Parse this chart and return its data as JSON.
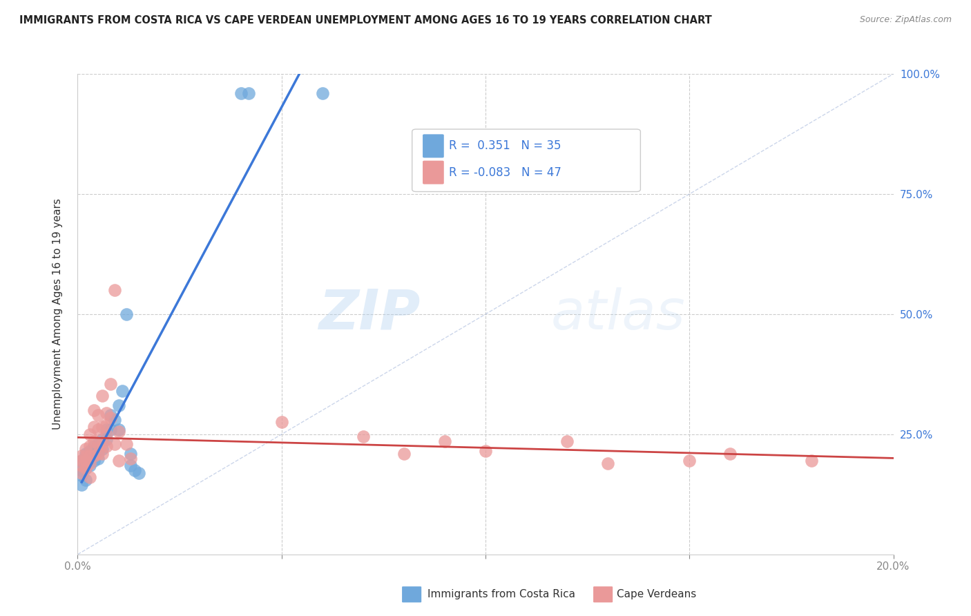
{
  "title": "IMMIGRANTS FROM COSTA RICA VS CAPE VERDEAN UNEMPLOYMENT AMONG AGES 16 TO 19 YEARS CORRELATION CHART",
  "source": "Source: ZipAtlas.com",
  "ylabel": "Unemployment Among Ages 16 to 19 years",
  "legend_label1": "Immigrants from Costa Rica",
  "legend_label2": "Cape Verdeans",
  "R1": 0.351,
  "N1": 35,
  "R2": -0.083,
  "N2": 47,
  "xlim": [
    0.0,
    0.2
  ],
  "ylim": [
    0.0,
    1.0
  ],
  "color_blue": "#6fa8dc",
  "color_pink": "#ea9999",
  "color_blue_line": "#3c78d8",
  "color_pink_line": "#cc4444",
  "color_diag": "#aabbdd",
  "watermark_zip": "ZIP",
  "watermark_atlas": "atlas",
  "blue_dots": [
    [
      0.001,
      0.195
    ],
    [
      0.001,
      0.175
    ],
    [
      0.001,
      0.165
    ],
    [
      0.002,
      0.21
    ],
    [
      0.002,
      0.195
    ],
    [
      0.002,
      0.18
    ],
    [
      0.003,
      0.215
    ],
    [
      0.003,
      0.2
    ],
    [
      0.003,
      0.185
    ],
    [
      0.004,
      0.225
    ],
    [
      0.004,
      0.205
    ],
    [
      0.004,
      0.195
    ],
    [
      0.005,
      0.23
    ],
    [
      0.005,
      0.215
    ],
    [
      0.005,
      0.2
    ],
    [
      0.006,
      0.24
    ],
    [
      0.006,
      0.22
    ],
    [
      0.007,
      0.26
    ],
    [
      0.007,
      0.24
    ],
    [
      0.008,
      0.29
    ],
    [
      0.008,
      0.26
    ],
    [
      0.009,
      0.28
    ],
    [
      0.01,
      0.31
    ],
    [
      0.01,
      0.26
    ],
    [
      0.011,
      0.34
    ],
    [
      0.012,
      0.5
    ],
    [
      0.013,
      0.21
    ],
    [
      0.013,
      0.185
    ],
    [
      0.014,
      0.175
    ],
    [
      0.015,
      0.17
    ],
    [
      0.04,
      0.96
    ],
    [
      0.042,
      0.96
    ],
    [
      0.06,
      0.96
    ],
    [
      0.001,
      0.145
    ],
    [
      0.002,
      0.155
    ]
  ],
  "pink_dots": [
    [
      0.001,
      0.205
    ],
    [
      0.001,
      0.195
    ],
    [
      0.001,
      0.185
    ],
    [
      0.001,
      0.17
    ],
    [
      0.002,
      0.22
    ],
    [
      0.002,
      0.205
    ],
    [
      0.002,
      0.195
    ],
    [
      0.002,
      0.18
    ],
    [
      0.003,
      0.25
    ],
    [
      0.003,
      0.225
    ],
    [
      0.003,
      0.205
    ],
    [
      0.003,
      0.19
    ],
    [
      0.004,
      0.3
    ],
    [
      0.004,
      0.265
    ],
    [
      0.004,
      0.235
    ],
    [
      0.004,
      0.205
    ],
    [
      0.005,
      0.29
    ],
    [
      0.005,
      0.26
    ],
    [
      0.005,
      0.23
    ],
    [
      0.005,
      0.21
    ],
    [
      0.006,
      0.33
    ],
    [
      0.006,
      0.265
    ],
    [
      0.006,
      0.23
    ],
    [
      0.006,
      0.21
    ],
    [
      0.007,
      0.295
    ],
    [
      0.007,
      0.27
    ],
    [
      0.007,
      0.25
    ],
    [
      0.007,
      0.225
    ],
    [
      0.008,
      0.355
    ],
    [
      0.008,
      0.285
    ],
    [
      0.009,
      0.55
    ],
    [
      0.009,
      0.23
    ],
    [
      0.01,
      0.255
    ],
    [
      0.01,
      0.195
    ],
    [
      0.012,
      0.23
    ],
    [
      0.013,
      0.2
    ],
    [
      0.05,
      0.275
    ],
    [
      0.07,
      0.245
    ],
    [
      0.08,
      0.21
    ],
    [
      0.09,
      0.235
    ],
    [
      0.1,
      0.215
    ],
    [
      0.12,
      0.235
    ],
    [
      0.13,
      0.19
    ],
    [
      0.15,
      0.195
    ],
    [
      0.16,
      0.21
    ],
    [
      0.18,
      0.195
    ],
    [
      0.003,
      0.16
    ]
  ]
}
